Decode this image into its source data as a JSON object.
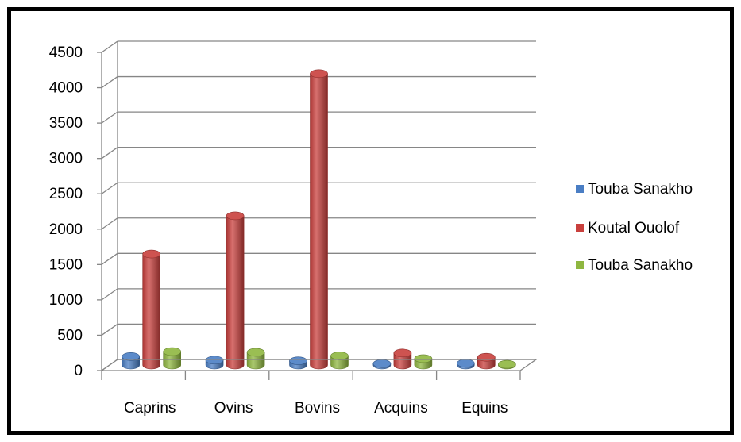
{
  "chart_data": {
    "type": "bar",
    "categories": [
      "Caprins",
      "Ovins",
      "Bovins",
      "Acquins",
      "Equins"
    ],
    "series": [
      {
        "name": "Touba Sanakho",
        "color": "#4a7ec4",
        "values": [
          120,
          70,
          60,
          20,
          25
        ]
      },
      {
        "name": "Koutal Ouolof",
        "color": "#c9403d",
        "values": [
          1570,
          2110,
          4120,
          170,
          110
        ]
      },
      {
        "name": "Touba Sanakho",
        "color": "#8fb740",
        "values": [
          190,
          180,
          130,
          90,
          10
        ]
      }
    ],
    "yticks": [
      "0",
      "500",
      "1000",
      "1500",
      "2000",
      "2500",
      "3000",
      "3500",
      "4000",
      "4500"
    ],
    "ylim": [
      0,
      4500
    ],
    "grid": true,
    "legend_position": "right",
    "style": "3d-cylinder"
  }
}
